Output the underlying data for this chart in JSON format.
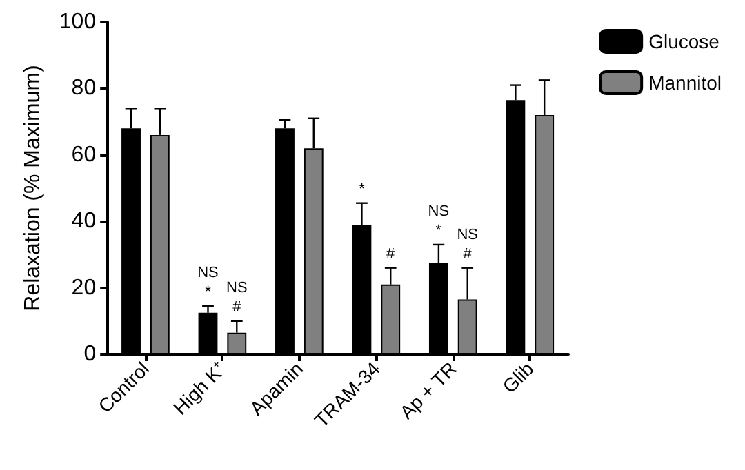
{
  "chart_data": {
    "type": "bar",
    "ylabel": "Relaxation (% Maximum)",
    "categories": [
      "Control",
      "High K⁺",
      "Apamin",
      "TRAM-34",
      "Ap + TR",
      "Glib"
    ],
    "series": [
      {
        "name": "Glucose",
        "color": "#000000",
        "values": [
          68,
          12.5,
          68,
          39,
          27.5,
          76.5
        ],
        "errors": [
          6,
          2,
          2.5,
          6.5,
          5.5,
          4.5
        ],
        "value_labels": [
          null,
          "NS\n*",
          null,
          "*",
          "NS\n*",
          null
        ]
      },
      {
        "name": "Mannitol",
        "color": "#808080",
        "values": [
          66,
          6.5,
          62,
          21,
          16.5,
          72
        ],
        "errors": [
          8,
          3.5,
          9,
          5,
          9.5,
          10.5
        ],
        "value_labels": [
          null,
          "NS\n#",
          null,
          "#",
          "NS\n#",
          null
        ]
      }
    ],
    "ylim": [
      0,
      100
    ],
    "yticks": [
      0,
      20,
      40,
      60,
      80,
      100
    ],
    "grid": false,
    "legend": "top right"
  }
}
